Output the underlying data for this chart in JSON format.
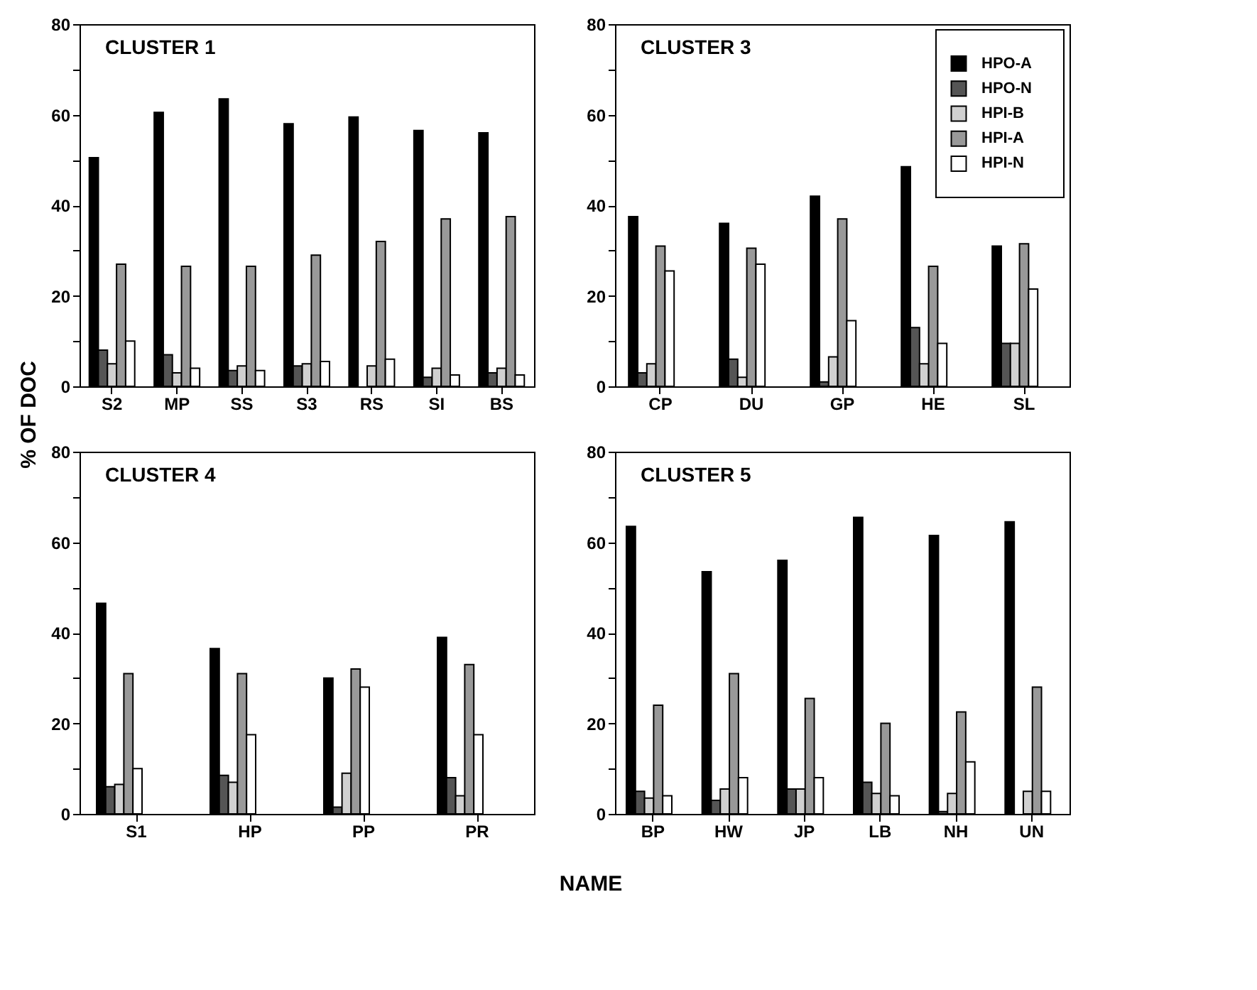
{
  "chart_data": [
    {
      "type": "bar",
      "title": "CLUSTER 1",
      "ylabel": "% OF DOC",
      "categories": [
        "S2",
        "MP",
        "SS",
        "S3",
        "RS",
        "SI",
        "BS"
      ],
      "ylim": [
        0,
        80
      ],
      "yticks": [
        0,
        {
          "value": 10,
          "label": null
        },
        20,
        {
          "value": 30,
          "label": null
        },
        40,
        {
          "value": 50,
          "label": null
        },
        60,
        {
          "value": 70,
          "label": null
        },
        80
      ],
      "grid": false,
      "legend": false,
      "series": [
        {
          "color": "#000000",
          "values": [
            50.5,
            60.5,
            63.5,
            58,
            59.5,
            56.5,
            56
          ]
        },
        {
          "color": "#555555",
          "values": [
            8,
            7,
            3.5,
            4.5,
            null,
            2,
            3
          ]
        },
        {
          "color": "#d0d0d0",
          "values": [
            5,
            3,
            4.5,
            5,
            4.5,
            4,
            4
          ]
        },
        {
          "color": "#999999",
          "values": [
            27,
            26.5,
            26.5,
            29,
            32,
            37,
            37.5
          ]
        },
        {
          "color": "#ffffff",
          "values": [
            10,
            4,
            3.5,
            5.5,
            6,
            2.5,
            2.5
          ]
        }
      ]
    },
    {
      "type": "bar",
      "title": "CLUSTER 3",
      "categories": [
        "CP",
        "DU",
        "GP",
        "HE",
        "SL"
      ],
      "ylim": [
        0,
        80
      ],
      "yticks": [
        0,
        {
          "value": 10,
          "label": null
        },
        20,
        {
          "value": 30,
          "label": null
        },
        40,
        {
          "value": 50,
          "label": null
        },
        60,
        {
          "value": 70,
          "label": null
        },
        80
      ],
      "grid": false,
      "legend": "top right",
      "series": [
        {
          "name": "HPO-A",
          "color": "#000000",
          "values": [
            37.5,
            36,
            42,
            48.5,
            31
          ]
        },
        {
          "name": "HPO-N",
          "color": "#555555",
          "values": [
            3,
            6,
            1,
            13,
            9.5
          ]
        },
        {
          "name": "HPI-B",
          "color": "#d0d0d0",
          "values": [
            5,
            2,
            6.5,
            5,
            9.5
          ]
        },
        {
          "name": "HPI-A",
          "color": "#999999",
          "values": [
            31,
            30.5,
            37,
            26.5,
            31.5
          ]
        },
        {
          "name": "HPI-N",
          "color": "#ffffff",
          "values": [
            25.5,
            27,
            14.5,
            9.5,
            21.5
          ]
        }
      ]
    },
    {
      "type": "bar",
      "title": "CLUSTER 4",
      "xlabel": "NAME",
      "categories": [
        "S1",
        "HP",
        "PP",
        "PR"
      ],
      "ylim": [
        0,
        80
      ],
      "yticks": [
        0,
        {
          "value": 10,
          "label": null
        },
        20,
        {
          "value": 30,
          "label": null
        },
        40,
        {
          "value": 50,
          "label": null
        },
        60,
        {
          "value": 70,
          "label": null
        },
        80
      ],
      "grid": false,
      "legend": false,
      "series": [
        {
          "color": "#000000",
          "values": [
            46.5,
            36.5,
            30,
            39
          ]
        },
        {
          "color": "#555555",
          "values": [
            6,
            8.5,
            1.5,
            8
          ]
        },
        {
          "color": "#d0d0d0",
          "values": [
            6.5,
            7,
            9,
            4
          ]
        },
        {
          "color": "#999999",
          "values": [
            31,
            31,
            32,
            33
          ]
        },
        {
          "color": "#ffffff",
          "values": [
            10,
            17.5,
            28,
            17.5
          ]
        }
      ]
    },
    {
      "type": "bar",
      "title": "CLUSTER 5",
      "categories": [
        "BP",
        "HW",
        "JP",
        "LB",
        "NH",
        "UN"
      ],
      "ylim": [
        0,
        80
      ],
      "yticks": [
        0,
        {
          "value": 10,
          "label": null
        },
        20,
        {
          "value": 30,
          "label": null
        },
        40,
        {
          "value": 50,
          "label": null
        },
        60,
        {
          "value": 70,
          "label": null
        },
        80
      ],
      "grid": false,
      "legend": false,
      "series": [
        {
          "color": "#000000",
          "values": [
            63.5,
            53.5,
            56,
            65.5,
            61.5,
            64.5
          ]
        },
        {
          "color": "#555555",
          "values": [
            5,
            3,
            5.5,
            7,
            0.5,
            null
          ]
        },
        {
          "color": "#d0d0d0",
          "values": [
            3.5,
            5.5,
            5.5,
            4.5,
            4.5,
            5
          ]
        },
        {
          "color": "#999999",
          "values": [
            24,
            31,
            25.5,
            20,
            22.5,
            28
          ]
        },
        {
          "color": "#ffffff",
          "values": [
            4,
            8,
            8,
            4,
            11.5,
            5
          ]
        }
      ]
    }
  ]
}
